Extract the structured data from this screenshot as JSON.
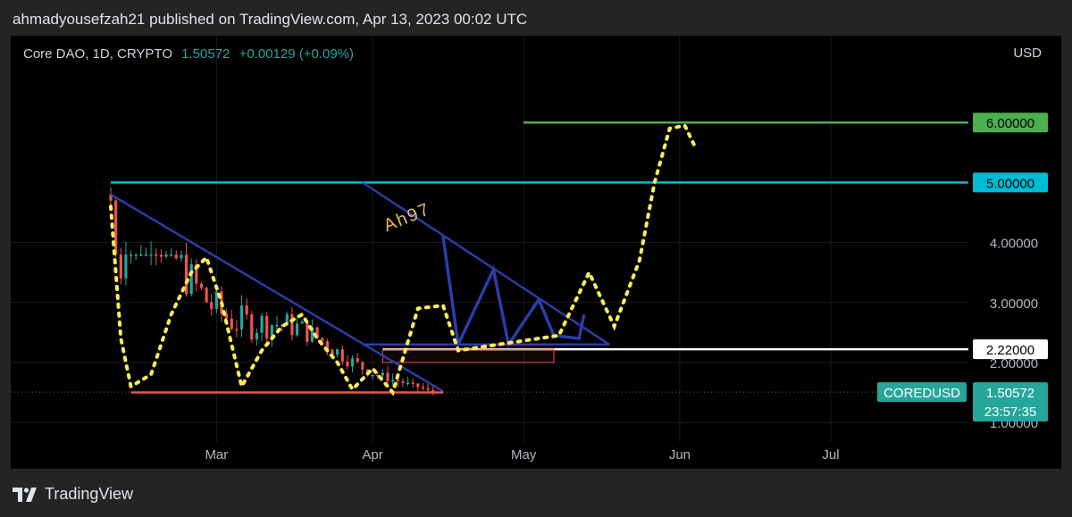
{
  "header": {
    "publisher_line": "ahmadyousefzah21 published on TradingView.com, Apr 13, 2023 00:02 UTC"
  },
  "symbol": {
    "name": "Core DAO, 1D, CRYPTO",
    "price": "1.50572",
    "change": "+0.00129 (+0.09%)",
    "currency": "USD"
  },
  "footer": {
    "brand": "TradingView"
  },
  "annotation": {
    "text": "Ah97"
  },
  "colors": {
    "up": "#26a69a",
    "down": "#ef5350",
    "green_level": "#4caf50",
    "cyan_level": "#00bcd4",
    "trend": "#2b3ea8",
    "path": "#ffee58"
  },
  "chart_data": {
    "type": "candlestick",
    "title": "Core DAO, 1D, CRYPTO",
    "x_ticks": [
      "Mar",
      "Apr",
      "May",
      "Jun",
      "Jul"
    ],
    "y_ticks": [
      "1.00000",
      "2.00000",
      "3.00000",
      "4.00000"
    ],
    "ylim": [
      0.6,
      7.0
    ],
    "last_price": {
      "label": "COREDUSD",
      "value": "1.50572",
      "countdown": "23:57:35"
    },
    "levels": [
      {
        "name": "6.00000",
        "value": 6.0,
        "color": "#4caf50",
        "start": "2023-05-01"
      },
      {
        "name": "5.00000",
        "value": 5.0,
        "color": "#00bcd4",
        "start": "2023-02-08"
      },
      {
        "name": "2.22000",
        "value": 2.22,
        "color": "#ffffff",
        "start": "2023-04-03"
      }
    ],
    "candles_summary": {
      "start": "2023-02-08",
      "end": "2023-04-13",
      "open": 4.8,
      "high": 4.8,
      "low": 1.45,
      "last": 1.50572
    },
    "triangle_1": {
      "apex_top": [
        "2023-02-08",
        4.8
      ],
      "apex_right": [
        "2023-04-15",
        1.52
      ],
      "base_left": [
        "2023-02-12",
        1.5
      ]
    },
    "triangle_2": {
      "top": [
        "2023-03-30",
        5.0
      ],
      "right": [
        "2023-05-18",
        2.3
      ],
      "base_left": [
        "2023-03-30",
        2.3
      ]
    },
    "projection_zigzag": [
      [
        "2023-04-15",
        4.1
      ],
      [
        "2023-04-18",
        2.3
      ],
      [
        "2023-04-25",
        3.55
      ],
      [
        "2023-04-28",
        2.3
      ],
      [
        "2023-05-04",
        3.05
      ],
      [
        "2023-05-07",
        2.45
      ],
      [
        "2023-05-12",
        2.4
      ],
      [
        "2023-05-13",
        2.8
      ]
    ],
    "projection_dotted": [
      [
        "2023-02-08",
        4.6
      ],
      [
        "2023-02-10",
        2.4
      ],
      [
        "2023-02-12",
        1.6
      ],
      [
        "2023-02-16",
        1.8
      ],
      [
        "2023-02-20",
        2.8
      ],
      [
        "2023-02-24",
        3.5
      ],
      [
        "2023-02-27",
        3.75
      ],
      [
        "2023-03-02",
        3.0
      ],
      [
        "2023-03-06",
        1.6
      ],
      [
        "2023-03-10",
        2.2
      ],
      [
        "2023-03-14",
        2.6
      ],
      [
        "2023-03-18",
        2.8
      ],
      [
        "2023-03-21",
        2.4
      ],
      [
        "2023-03-25",
        2.0
      ],
      [
        "2023-03-28",
        1.55
      ],
      [
        "2023-04-01",
        1.9
      ],
      [
        "2023-04-05",
        1.5
      ],
      [
        "2023-04-10",
        2.9
      ],
      [
        "2023-04-15",
        2.95
      ],
      [
        "2023-04-18",
        2.2
      ],
      [
        "2023-05-08",
        2.45
      ],
      [
        "2023-05-14",
        3.5
      ],
      [
        "2023-05-19",
        2.6
      ],
      [
        "2023-05-24",
        3.7
      ],
      [
        "2023-05-27",
        5.0
      ],
      [
        "2023-05-30",
        5.9
      ],
      [
        "2023-06-02",
        5.95
      ],
      [
        "2023-06-04",
        5.6
      ]
    ]
  }
}
